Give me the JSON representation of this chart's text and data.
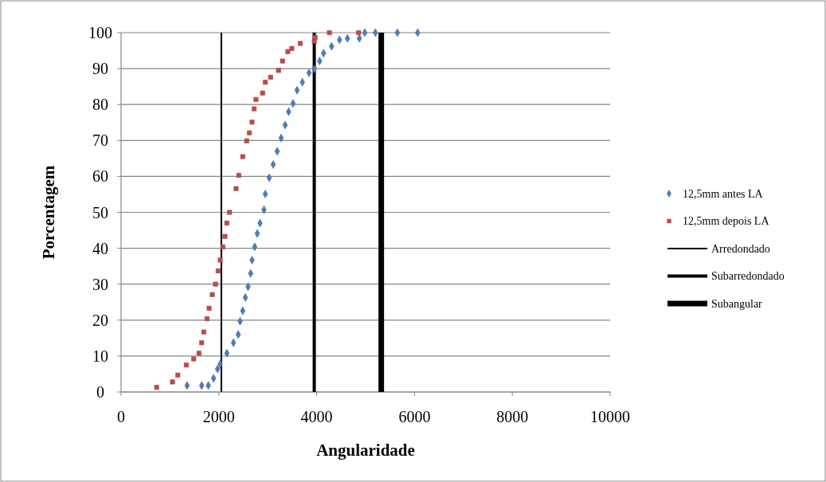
{
  "chart_data": {
    "type": "scatter",
    "xlabel": "Angularidade",
    "ylabel": "Porcentagem",
    "xlim": [
      0,
      10000
    ],
    "xticks": [
      0,
      2000,
      4000,
      6000,
      8000,
      10000
    ],
    "ylim": [
      0,
      100
    ],
    "yticks": [
      0,
      10,
      20,
      30,
      40,
      50,
      60,
      70,
      80,
      90,
      100
    ],
    "grid": "y",
    "legend": "right",
    "series": [
      {
        "name": "12,5mm antes LA",
        "color": "#4a7ebb",
        "marker": "diamond",
        "x": [
          1350,
          1648,
          1784,
          1892,
          1973,
          2028,
          2163,
          2298,
          2396,
          2434,
          2488,
          2542,
          2596,
          2650,
          2678,
          2732,
          2785,
          2840,
          2922,
          2949,
          3029,
          3111,
          3192,
          3273,
          3355,
          3426,
          3517,
          3598,
          3707,
          3843,
          3951,
          4060,
          4141,
          4304,
          4467,
          4629,
          4873,
          4984,
          5200,
          5649,
          6065
        ],
        "values": [
          1.8,
          1.8,
          1.8,
          3.8,
          6.4,
          7.8,
          10.8,
          13.7,
          16,
          19.7,
          22.6,
          26.3,
          29.3,
          33,
          36.7,
          40.4,
          44.1,
          47,
          50.7,
          55.1,
          59.6,
          63.3,
          67,
          70.7,
          74.3,
          78,
          80.3,
          84,
          86.2,
          88.8,
          89.9,
          92.1,
          94.3,
          96.2,
          98,
          98.4,
          98.4,
          100,
          100,
          100,
          100
        ]
      },
      {
        "name": "12,5mm depois LA",
        "color": "#be4b48",
        "marker": "square",
        "x": [
          727,
          1052,
          1160,
          1333,
          1485,
          1593,
          1648,
          1691,
          1756,
          1800,
          1865,
          1930,
          1984,
          2028,
          2081,
          2125,
          2163,
          2217,
          2352,
          2407,
          2488,
          2569,
          2623,
          2678,
          2720,
          2759,
          2894,
          2949,
          3057,
          3220,
          3301,
          3409,
          3491,
          3664,
          3951,
          3967,
          4260,
          4857
        ],
        "values": [
          1.3,
          2.8,
          4.7,
          7.5,
          9.2,
          10.8,
          13.7,
          16.7,
          20.4,
          23.3,
          27.1,
          30,
          33.7,
          36.7,
          40.4,
          43.3,
          47,
          50,
          56.6,
          60.3,
          65.5,
          69.9,
          72.1,
          75.1,
          78.8,
          81.4,
          83.2,
          86.2,
          87.6,
          89.5,
          92.1,
          94.7,
          95.6,
          97,
          97.6,
          98.7,
          100,
          100
        ]
      },
      {
        "name": "Arredondado",
        "type": "line",
        "color": "#000000",
        "x": [
          2050,
          2050
        ],
        "values": [
          0,
          100
        ]
      },
      {
        "name": "Subarredondado",
        "type": "line",
        "color": "#000000",
        "x": [
          3950,
          3950
        ],
        "values": [
          0,
          100
        ]
      },
      {
        "name": "Subangular",
        "type": "line",
        "color": "#000000",
        "x": [
          5320,
          5320
        ],
        "values": [
          0,
          100
        ]
      }
    ]
  }
}
